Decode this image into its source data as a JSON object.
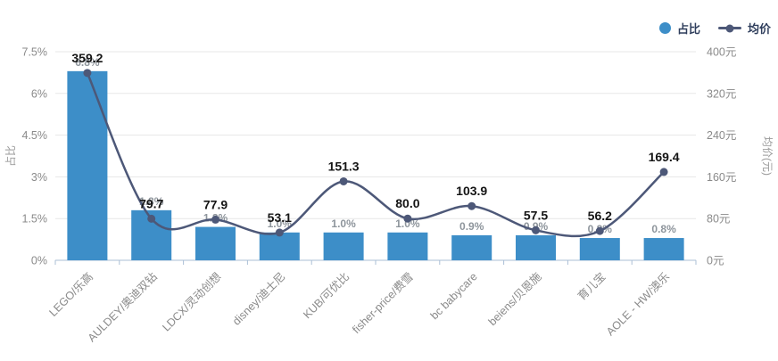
{
  "legend": {
    "items": [
      {
        "label": "占比",
        "marker": "circle-icon",
        "color": "#3D8EC8"
      },
      {
        "label": "均价",
        "marker": "line-dot-icon",
        "color": "#4D5878"
      }
    ]
  },
  "chart_data": {
    "type": "bar+line dual-axis",
    "categories": [
      "LEGO/乐高",
      "AULDEY/奥迪双钻",
      "LDCX/灵动创想",
      "disney/迪士尼",
      "KUB/可优比",
      "fisher-price/费雪",
      "bc babycare",
      "beiens/贝恩施",
      "育儿宝",
      "AOLE - HW/澳乐"
    ],
    "series": [
      {
        "name": "占比",
        "type": "bar",
        "axis": "left",
        "color": "#3D8EC8",
        "values": [
          6.8,
          1.8,
          1.2,
          1.0,
          1.0,
          1.0,
          0.9,
          0.9,
          0.8,
          0.8
        ],
        "labels": [
          "6.8%",
          "1.8%",
          "1.2%",
          "1.0%",
          "1.0%",
          "1.0%",
          "0.9%",
          "0.9%",
          "0.8%",
          "0.8%"
        ]
      },
      {
        "name": "均价",
        "type": "line",
        "axis": "right",
        "smooth": true,
        "color": "#4D5878",
        "values": [
          359.2,
          79.7,
          77.9,
          53.1,
          151.3,
          80.0,
          103.9,
          57.5,
          56.2,
          169.4
        ],
        "labels": [
          "359.2",
          "79.7",
          "77.9",
          "53.1",
          "151.3",
          "80.0",
          "103.9",
          "57.5",
          "56.2",
          "169.4"
        ]
      }
    ],
    "left_axis": {
      "title": "占比",
      "min": 0,
      "max": 7.5,
      "ticks": [
        "0%",
        "1.5%",
        "3%",
        "4.5%",
        "6%",
        "7.5%"
      ]
    },
    "right_axis": {
      "title": "均价(元)",
      "min": 0,
      "max": 400,
      "ticks": [
        "0元",
        "80元",
        "160元",
        "240元",
        "320元",
        "400元"
      ]
    },
    "grid": true,
    "legend_position": "top-right"
  },
  "style": {
    "bar_color": "#3D8EC8",
    "line_color": "#4D5878",
    "grid_color": "#E7E7E7",
    "axis_line_color": "#ABBFD6",
    "tick_text_color": "#8A8A8A",
    "axis_title_color": "#9A9A9A",
    "percent_label_color": "#8E959C",
    "price_label_color": "#151515"
  }
}
